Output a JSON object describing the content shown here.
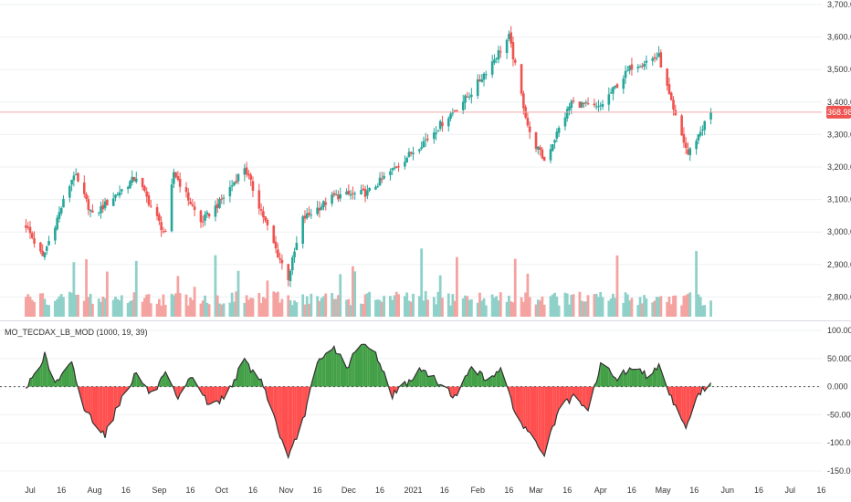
{
  "colors": {
    "up": "#26a69a",
    "down": "#ef5350",
    "vol_up": "#8fd1c9",
    "vol_down": "#f4a3a1",
    "osc_pos": "#43a047",
    "osc_neg": "#ff4f4f",
    "osc_line": "#333333",
    "grid": "#eef0f3",
    "price_line": "#f4a9a9",
    "price_tag": "#ef5350"
  },
  "price_axis": {
    "ticks": [
      "3,700.000",
      "3,600.000",
      "3,500.000",
      "3,400.000",
      "3,300.000",
      "3,200.000",
      "3,100.000",
      "3,000.000",
      "2,900.000",
      "2,800.000"
    ],
    "current": "3,368.980",
    "current_value": 3368.98
  },
  "oscillator": {
    "title": "MO_TECDAX_LB_MOD (1000, 19, 39)",
    "ticks": [
      "100.000",
      "50.000",
      "0.000",
      "-50.000",
      "-100.000",
      "-150.000"
    ]
  },
  "time_axis": [
    "Jul",
    "16",
    "Aug",
    "16",
    "Sep",
    "16",
    "Oct",
    "16",
    "Nov",
    "16",
    "Dec",
    "16",
    "2021",
    "16",
    "Feb",
    "16",
    "Mar",
    "16",
    "Apr",
    "16",
    "May",
    "16",
    "Jun",
    "16",
    "Jul",
    "16"
  ],
  "chart_data": [
    {
      "type": "candlestick",
      "ylim": [
        2750,
        3700
      ],
      "anchors": [
        {
          "d": "2020-06-29",
          "v": 3020
        },
        {
          "d": "2020-07-07",
          "v": 2920
        },
        {
          "d": "2020-07-22",
          "v": 3180
        },
        {
          "d": "2020-07-31",
          "v": 3050
        },
        {
          "d": "2020-08-21",
          "v": 3170
        },
        {
          "d": "2020-09-04",
          "v": 2990
        },
        {
          "d": "2020-09-08",
          "v": 3185
        },
        {
          "d": "2020-09-21",
          "v": 3030
        },
        {
          "d": "2020-09-30",
          "v": 3090
        },
        {
          "d": "2020-10-12",
          "v": 3200
        },
        {
          "d": "2020-10-28",
          "v": 2930
        },
        {
          "d": "2020-11-02",
          "v": 2860
        },
        {
          "d": "2020-11-09",
          "v": 3040
        },
        {
          "d": "2020-11-24",
          "v": 3110
        },
        {
          "d": "2020-12-10",
          "v": 3120
        },
        {
          "d": "2021-01-08",
          "v": 3290
        },
        {
          "d": "2021-01-29",
          "v": 3430
        },
        {
          "d": "2021-02-16",
          "v": 3600
        },
        {
          "d": "2021-02-26",
          "v": 3300
        },
        {
          "d": "2021-03-05",
          "v": 3220
        },
        {
          "d": "2021-03-18",
          "v": 3400
        },
        {
          "d": "2021-03-31",
          "v": 3380
        },
        {
          "d": "2021-04-16",
          "v": 3510
        },
        {
          "d": "2021-04-29",
          "v": 3540
        },
        {
          "d": "2021-05-06",
          "v": 3370
        },
        {
          "d": "2021-05-13",
          "v": 3240
        },
        {
          "d": "2021-05-24",
          "v": 3369
        }
      ]
    },
    {
      "type": "area",
      "title": "MO_TECDAX_LB_MOD (1000, 19, 39)",
      "ylim": [
        -150,
        100
      ],
      "anchors": [
        {
          "d": "2020-06-29",
          "v": -5
        },
        {
          "d": "2020-07-03",
          "v": 25
        },
        {
          "d": "2020-07-08",
          "v": 55
        },
        {
          "d": "2020-07-13",
          "v": 5
        },
        {
          "d": "2020-07-21",
          "v": 40
        },
        {
          "d": "2020-07-27",
          "v": -40
        },
        {
          "d": "2020-08-06",
          "v": -85
        },
        {
          "d": "2020-08-14",
          "v": -20
        },
        {
          "d": "2020-08-21",
          "v": 25
        },
        {
          "d": "2020-08-28",
          "v": -15
        },
        {
          "d": "2020-09-04",
          "v": 20
        },
        {
          "d": "2020-09-10",
          "v": -25
        },
        {
          "d": "2020-09-17",
          "v": 20
        },
        {
          "d": "2020-09-25",
          "v": -35
        },
        {
          "d": "2020-10-02",
          "v": -20
        },
        {
          "d": "2020-10-12",
          "v": 45
        },
        {
          "d": "2020-10-21",
          "v": 5
        },
        {
          "d": "2020-10-28",
          "v": -75
        },
        {
          "d": "2020-11-02",
          "v": -130
        },
        {
          "d": "2020-11-09",
          "v": -60
        },
        {
          "d": "2020-11-16",
          "v": 40
        },
        {
          "d": "2020-11-24",
          "v": 70
        },
        {
          "d": "2020-11-30",
          "v": 35
        },
        {
          "d": "2020-12-07",
          "v": 75
        },
        {
          "d": "2020-12-14",
          "v": 60
        },
        {
          "d": "2020-12-22",
          "v": -15
        },
        {
          "d": "2021-01-05",
          "v": 30
        },
        {
          "d": "2021-01-14",
          "v": 5
        },
        {
          "d": "2021-01-22",
          "v": -20
        },
        {
          "d": "2021-01-29",
          "v": 40
        },
        {
          "d": "2021-02-05",
          "v": 10
        },
        {
          "d": "2021-02-12",
          "v": 35
        },
        {
          "d": "2021-02-18",
          "v": -40
        },
        {
          "d": "2021-02-26",
          "v": -85
        },
        {
          "d": "2021-03-05",
          "v": -120
        },
        {
          "d": "2021-03-12",
          "v": -40
        },
        {
          "d": "2021-03-19",
          "v": -20
        },
        {
          "d": "2021-03-26",
          "v": -45
        },
        {
          "d": "2021-04-01",
          "v": 40
        },
        {
          "d": "2021-04-09",
          "v": 15
        },
        {
          "d": "2021-04-16",
          "v": 35
        },
        {
          "d": "2021-04-23",
          "v": 20
        },
        {
          "d": "2021-04-29",
          "v": 40
        },
        {
          "d": "2021-05-05",
          "v": -20
        },
        {
          "d": "2021-05-12",
          "v": -70
        },
        {
          "d": "2021-05-18",
          "v": -15
        },
        {
          "d": "2021-05-24",
          "v": 10
        }
      ]
    }
  ]
}
